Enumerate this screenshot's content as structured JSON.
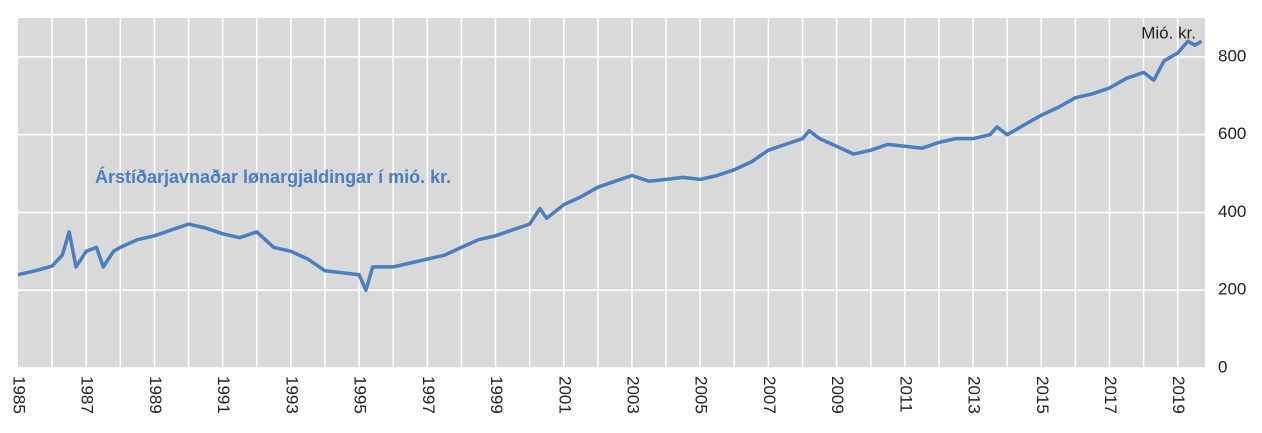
{
  "chart_data": {
    "type": "line",
    "annotation": "Árstíðarjavnaðar  lønargjaldingar  í mió. kr.",
    "unit_label": "Mió. kr.",
    "series": [
      {
        "name": "Árstíðarjavnaðar lønargjaldingar",
        "color": "#4a7ebf",
        "x": [
          1985.0,
          1985.5,
          1986.0,
          1986.3,
          1986.5,
          1986.7,
          1987.0,
          1987.3,
          1987.5,
          1987.8,
          1988.0,
          1988.5,
          1989.0,
          1989.5,
          1990.0,
          1990.5,
          1991.0,
          1991.5,
          1992.0,
          1992.5,
          1993.0,
          1993.5,
          1994.0,
          1994.5,
          1995.0,
          1995.2,
          1995.4,
          1996.0,
          1996.5,
          1997.0,
          1997.5,
          1998.0,
          1998.5,
          1999.0,
          1999.5,
          2000.0,
          2000.3,
          2000.5,
          2001.0,
          2001.5,
          2002.0,
          2002.5,
          2003.0,
          2003.5,
          2004.0,
          2004.5,
          2005.0,
          2005.5,
          2006.0,
          2006.5,
          2007.0,
          2007.5,
          2008.0,
          2008.2,
          2008.5,
          2009.0,
          2009.5,
          2010.0,
          2010.5,
          2011.0,
          2011.5,
          2012.0,
          2012.5,
          2013.0,
          2013.5,
          2013.7,
          2014.0,
          2014.5,
          2015.0,
          2015.5,
          2016.0,
          2016.5,
          2017.0,
          2017.5,
          2018.0,
          2018.3,
          2018.6,
          2019.0,
          2019.3,
          2019.5,
          2019.7
        ],
        "values": [
          240,
          250,
          262,
          290,
          350,
          260,
          300,
          310,
          260,
          300,
          310,
          330,
          340,
          355,
          370,
          360,
          345,
          335,
          350,
          310,
          300,
          280,
          250,
          245,
          240,
          200,
          260,
          260,
          270,
          280,
          290,
          310,
          330,
          340,
          355,
          370,
          410,
          385,
          420,
          440,
          465,
          480,
          495,
          480,
          485,
          490,
          485,
          495,
          510,
          530,
          560,
          575,
          590,
          610,
          590,
          570,
          550,
          560,
          575,
          570,
          565,
          580,
          590,
          590,
          600,
          620,
          600,
          625,
          650,
          670,
          695,
          705,
          720,
          745,
          760,
          740,
          790,
          810,
          840,
          830,
          840
        ]
      }
    ],
    "xlim": [
      1985,
      2019.8
    ],
    "xticks": [
      1985,
      1987,
      1989,
      1991,
      1993,
      1995,
      1997,
      1999,
      2001,
      2003,
      2005,
      2007,
      2009,
      2011,
      2013,
      2015,
      2017,
      2019
    ],
    "x_grid": [
      1986,
      1987,
      1988,
      1989,
      1990,
      1991,
      1992,
      1993,
      1994,
      1995,
      1996,
      1997,
      1998,
      1999,
      2000,
      2001,
      2002,
      2003,
      2004,
      2005,
      2006,
      2007,
      2008,
      2009,
      2010,
      2011,
      2012,
      2013,
      2014,
      2015,
      2016,
      2017,
      2018,
      2019
    ],
    "ylim": [
      0,
      900
    ],
    "yticks": [
      0,
      200,
      400,
      600,
      800
    ],
    "grid": true
  }
}
